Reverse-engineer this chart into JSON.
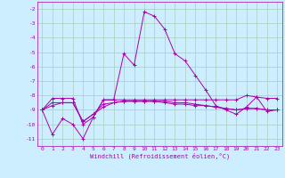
{
  "xlabel": "Windchill (Refroidissement éolien,°C)",
  "bg_color": "#cceeff",
  "grid_color": "#aaccbb",
  "line_color": "#aa00aa",
  "xlim": [
    -0.5,
    23.5
  ],
  "ylim": [
    -11.5,
    -1.5
  ],
  "yticks": [
    -2,
    -3,
    -4,
    -5,
    -6,
    -7,
    -8,
    -9,
    -10,
    -11
  ],
  "xticks": [
    0,
    1,
    2,
    3,
    4,
    5,
    6,
    7,
    8,
    9,
    10,
    11,
    12,
    13,
    14,
    15,
    16,
    17,
    18,
    19,
    20,
    21,
    22,
    23
  ],
  "series": [
    {
      "x": [
        0,
        1,
        2,
        3,
        4,
        5,
        6,
        7,
        8,
        9,
        10,
        11,
        12,
        13,
        14,
        15,
        16,
        17,
        18,
        19,
        20,
        21,
        22,
        23
      ],
      "y": [
        -9.0,
        -10.7,
        -9.6,
        -10.0,
        -11.0,
        -9.5,
        -8.3,
        -8.3,
        -5.1,
        -5.9,
        -2.2,
        -2.5,
        -3.4,
        -5.1,
        -5.6,
        -6.6,
        -7.6,
        -8.7,
        -9.0,
        -9.3,
        -8.8,
        -8.1,
        -9.1,
        -9.0
      ]
    },
    {
      "x": [
        0,
        1,
        2,
        3,
        4,
        5,
        6,
        7,
        8,
        9,
        10,
        11,
        12,
        13,
        14,
        15,
        16,
        17,
        18,
        19,
        20,
        21,
        22,
        23
      ],
      "y": [
        -9.0,
        -8.2,
        -8.2,
        -8.2,
        -10.0,
        -9.5,
        -8.3,
        -8.3,
        -8.3,
        -8.3,
        -8.3,
        -8.3,
        -8.3,
        -8.3,
        -8.3,
        -8.3,
        -8.3,
        -8.3,
        -8.3,
        -8.3,
        -8.0,
        -8.1,
        -8.2,
        -8.2
      ]
    },
    {
      "x": [
        0,
        1,
        2,
        3,
        4,
        5,
        6,
        7,
        8,
        9,
        10,
        11,
        12,
        13,
        14,
        15,
        16,
        17,
        18,
        19,
        20,
        21,
        22,
        23
      ],
      "y": [
        -9.0,
        -8.5,
        -8.5,
        -8.5,
        -9.8,
        -9.3,
        -8.8,
        -8.5,
        -8.4,
        -8.4,
        -8.4,
        -8.4,
        -8.4,
        -8.5,
        -8.5,
        -8.6,
        -8.7,
        -8.8,
        -8.9,
        -9.0,
        -8.9,
        -8.9,
        -9.0,
        -9.0
      ]
    },
    {
      "x": [
        0,
        1,
        2,
        3,
        4,
        5,
        6,
        7,
        8,
        9,
        10,
        11,
        12,
        13,
        14,
        15,
        16,
        17,
        18,
        19,
        20,
        21,
        22,
        23
      ],
      "y": [
        -9.0,
        -8.7,
        -8.5,
        -8.5,
        -9.8,
        -9.3,
        -8.6,
        -8.5,
        -8.4,
        -8.4,
        -8.4,
        -8.4,
        -8.5,
        -8.6,
        -8.6,
        -8.7,
        -8.7,
        -8.8,
        -8.9,
        -9.0,
        -8.9,
        -8.9,
        -9.0,
        -9.0
      ]
    }
  ]
}
